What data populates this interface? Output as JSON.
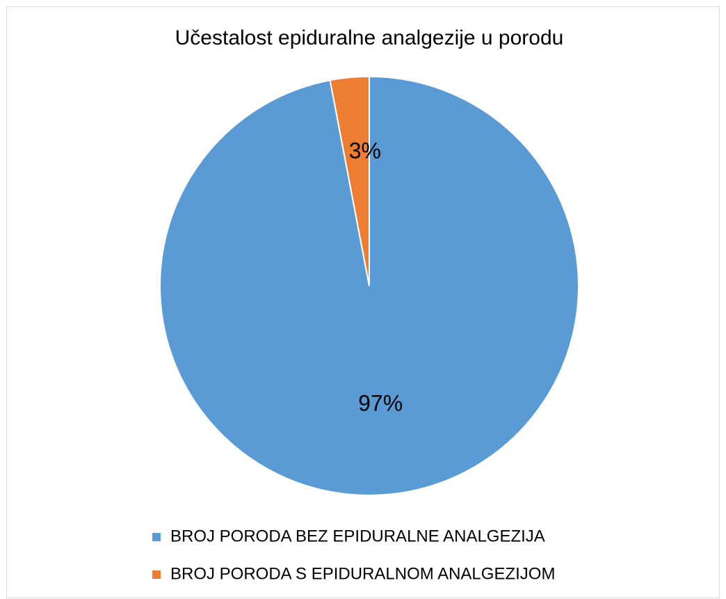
{
  "chart_data": {
    "type": "pie",
    "title": "Učestalost epiduralne analgezije u porodu",
    "categories": [
      "BROJ PORODA BEZ EPIDURALNE ANALGEZIJA",
      "BROJ PORODA S EPIDURALNOM ANALGEZIJOM"
    ],
    "values": [
      97,
      3
    ],
    "value_labels": [
      "97%",
      "3%"
    ],
    "colors": [
      "#5b9bd5",
      "#ed7d31"
    ],
    "legend": "bottom"
  }
}
